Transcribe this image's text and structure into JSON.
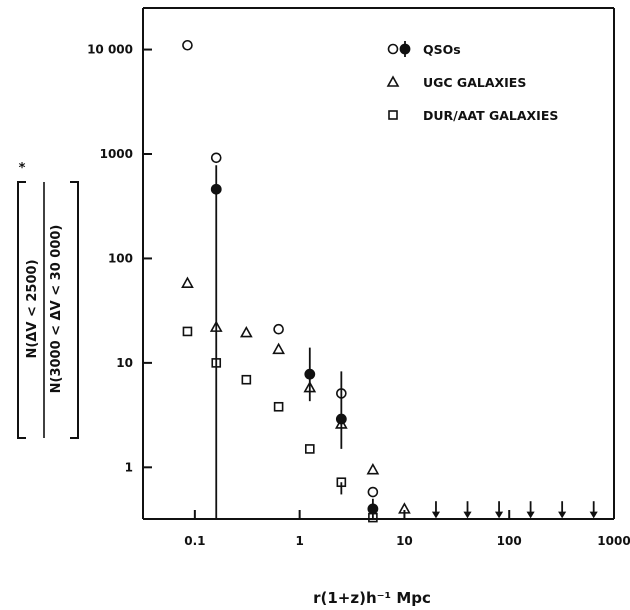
{
  "chart_data": {
    "type": "scatter",
    "xlabel": "r(1+z)h⁻¹ Mpc",
    "ylabel_numerator": "N(ΔV < 2500)",
    "ylabel_denominator": "N(3000 < ΔV < 30 000)",
    "ylabel_superscript": "*",
    "x_scale": "log",
    "y_scale": "log",
    "xlim": [
      0.032,
      1000
    ],
    "ylim": [
      0.32,
      25000
    ],
    "x_ticks": [
      {
        "value": 0.1,
        "label": "0.1"
      },
      {
        "value": 1,
        "label": "1"
      },
      {
        "value": 10,
        "label": "10"
      },
      {
        "value": 100,
        "label": "100"
      },
      {
        "value": 1000,
        "label": "1000"
      }
    ],
    "y_ticks": [
      {
        "value": 1,
        "label": "1"
      },
      {
        "value": 10,
        "label": "10"
      },
      {
        "value": 100,
        "label": "100"
      },
      {
        "value": 1000,
        "label": "1000"
      },
      {
        "value": 10000,
        "label": "10 000"
      }
    ],
    "legend": {
      "position": "top-right",
      "entries": [
        {
          "label": "QSOs",
          "marker": "circle-open-filled"
        },
        {
          "label": "UGC GALAXIES",
          "marker": "triangle"
        },
        {
          "label": "DUR/AAT GALAXIES",
          "marker": "square"
        }
      ]
    },
    "series": [
      {
        "name": "QSOs",
        "marker": "circle-open",
        "points": [
          {
            "x": 0.085,
            "y": 11000
          },
          {
            "x": 0.16,
            "y": 920
          },
          {
            "x": 0.63,
            "y": 21
          },
          {
            "x": 2.5,
            "y": 5.1
          },
          {
            "x": 5.0,
            "y": 0.58
          }
        ]
      },
      {
        "name": "QSOs",
        "marker": "circle-filled",
        "points": [
          {
            "x": 0.16,
            "y": 460,
            "ylow": 0.32,
            "yhigh": 780
          },
          {
            "x": 1.25,
            "y": 7.8,
            "ylow": 4.3,
            "yhigh": 14
          },
          {
            "x": 2.5,
            "y": 2.9,
            "ylow": 1.5,
            "yhigh": 8.3
          },
          {
            "x": 5.0,
            "y": 0.4,
            "ylow": 0.32,
            "yhigh": 0.5
          }
        ]
      },
      {
        "name": "UGC GALAXIES",
        "marker": "triangle",
        "points": [
          {
            "x": 0.085,
            "y": 58
          },
          {
            "x": 0.16,
            "y": 22
          },
          {
            "x": 0.31,
            "y": 19.5
          },
          {
            "x": 0.63,
            "y": 13.5
          },
          {
            "x": 1.25,
            "y": 5.8
          },
          {
            "x": 2.5,
            "y": 2.6
          },
          {
            "x": 5.0,
            "y": 0.95
          },
          {
            "x": 10,
            "y": 0.4
          }
        ]
      },
      {
        "name": "DUR/AAT GALAXIES",
        "marker": "square",
        "points": [
          {
            "x": 0.085,
            "y": 20
          },
          {
            "x": 0.16,
            "y": 10
          },
          {
            "x": 0.31,
            "y": 6.9
          },
          {
            "x": 0.63,
            "y": 3.8
          },
          {
            "x": 1.25,
            "y": 1.5
          },
          {
            "x": 2.5,
            "y": 0.72,
            "ylow": 0.55
          },
          {
            "x": 5.0,
            "y": 0.33
          }
        ]
      },
      {
        "name": "upper limits",
        "marker": "arrow-down",
        "points": [
          {
            "x": 20,
            "y": 0.38
          },
          {
            "x": 40,
            "y": 0.38
          },
          {
            "x": 80,
            "y": 0.38
          },
          {
            "x": 160,
            "y": 0.38
          },
          {
            "x": 320,
            "y": 0.38
          },
          {
            "x": 640,
            "y": 0.38
          }
        ]
      }
    ]
  }
}
